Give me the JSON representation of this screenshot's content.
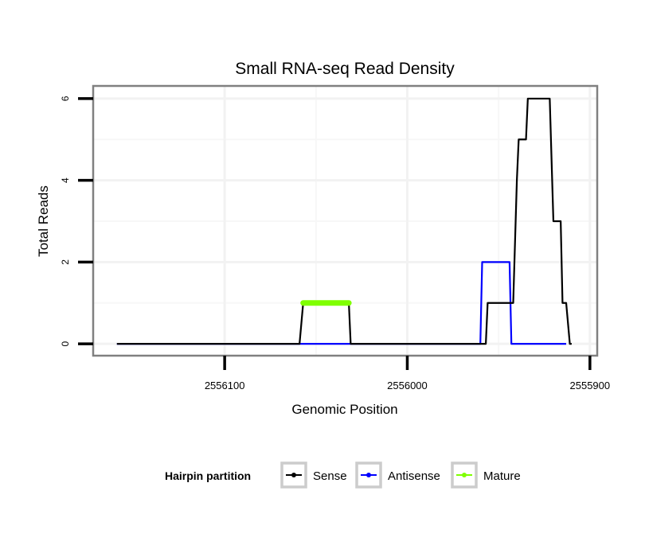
{
  "chart_data": {
    "type": "line",
    "title": "Small RNA-seq Read Density",
    "xlabel": "Genomic Position",
    "ylabel": "Total Reads",
    "xlim": [
      2556172,
      2555896
    ],
    "ylim": [
      -0.29,
      6.31
    ],
    "x_reversed": true,
    "xticks": [
      2556100,
      2556000,
      2555900
    ],
    "xtick_labels": [
      "2556100",
      "2556000",
      "2555900"
    ],
    "x_minor_grid": [
      2556050,
      2555950
    ],
    "yticks": [
      0,
      2,
      4,
      6
    ],
    "ytick_labels": [
      "0",
      "2",
      "4",
      "6"
    ],
    "y_minor_grid": [
      1,
      3,
      5
    ],
    "grid": true,
    "legend": {
      "title": "Hairpin partition",
      "position": "bottom"
    },
    "series": [
      {
        "name": "Sense",
        "color": "#000000",
        "x": [
          2556159,
          2556059,
          2556057,
          2556032,
          2556031,
          2555957,
          2555956,
          2555942,
          2555940,
          2555939,
          2555935,
          2555934,
          2555922,
          2555920,
          2555916,
          2555915,
          2555913,
          2555911,
          2555910
        ],
        "y": [
          0,
          0,
          1,
          1,
          0,
          0,
          1,
          1,
          4,
          5,
          5,
          6,
          6,
          3,
          3,
          1,
          1,
          0,
          0
        ]
      },
      {
        "name": "Antisense",
        "color": "#0000ff",
        "x": [
          2556159,
          2555960,
          2555959,
          2555944,
          2555943,
          2555913
        ],
        "y": [
          0,
          0,
          2,
          2,
          0,
          0
        ]
      },
      {
        "name": "Mature",
        "color": "#7fff00",
        "x": [
          2556057,
          2556032
        ],
        "y": [
          1,
          1
        ]
      }
    ]
  }
}
